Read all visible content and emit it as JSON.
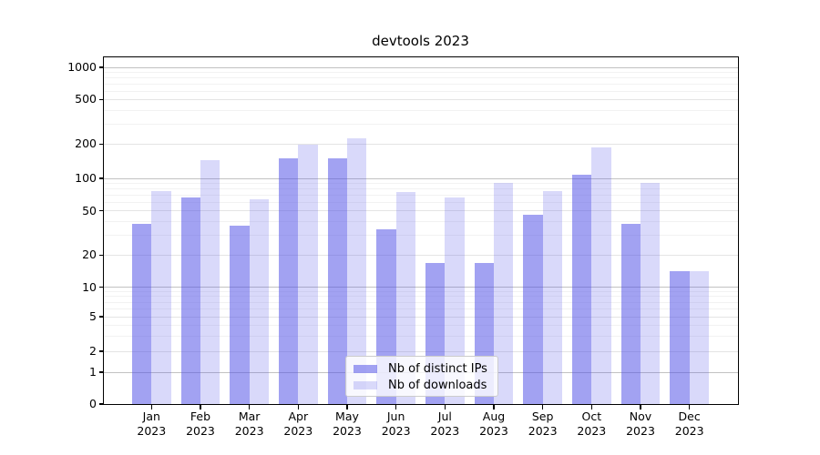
{
  "chart_data": {
    "type": "bar",
    "title": "devtools 2023",
    "yscale": "symlog",
    "grid": true,
    "legend_position": "lower center",
    "x_categories": [
      "Jan",
      "Feb",
      "Mar",
      "Apr",
      "May",
      "Jun",
      "Jul",
      "Aug",
      "Sep",
      "Oct",
      "Nov",
      "Dec"
    ],
    "x_year": "2023",
    "yticks": [
      0,
      1,
      2,
      5,
      10,
      20,
      50,
      100,
      200,
      500,
      1000
    ],
    "ytick_labels": [
      "0",
      "1",
      "2",
      "5",
      "10",
      "20",
      "50",
      "100",
      "200",
      "500",
      "1000"
    ],
    "ylim": [
      0,
      1250
    ],
    "series": [
      {
        "name": "Nb of distinct IPs",
        "color": "rgba(80,80,230,0.53)",
        "values": [
          38,
          66,
          37,
          150,
          151,
          34,
          17,
          17,
          46,
          108,
          38,
          14
        ]
      },
      {
        "name": "Nb of downloads",
        "color": "rgba(80,80,230,0.22)",
        "values": [
          76,
          145,
          64,
          199,
          225,
          75,
          66,
          90,
          76,
          188,
          91,
          14
        ]
      }
    ]
  },
  "colors": {
    "bar_base": "#5050e6",
    "bar_ips_on_white": "#a2a2f2",
    "bar_downloads_on_white": "#dadaf8",
    "grid_major": "#c2c2c2",
    "grid_minor": "#f2f2f2",
    "axis": "#000000",
    "legend_border": "#cccccc"
  }
}
